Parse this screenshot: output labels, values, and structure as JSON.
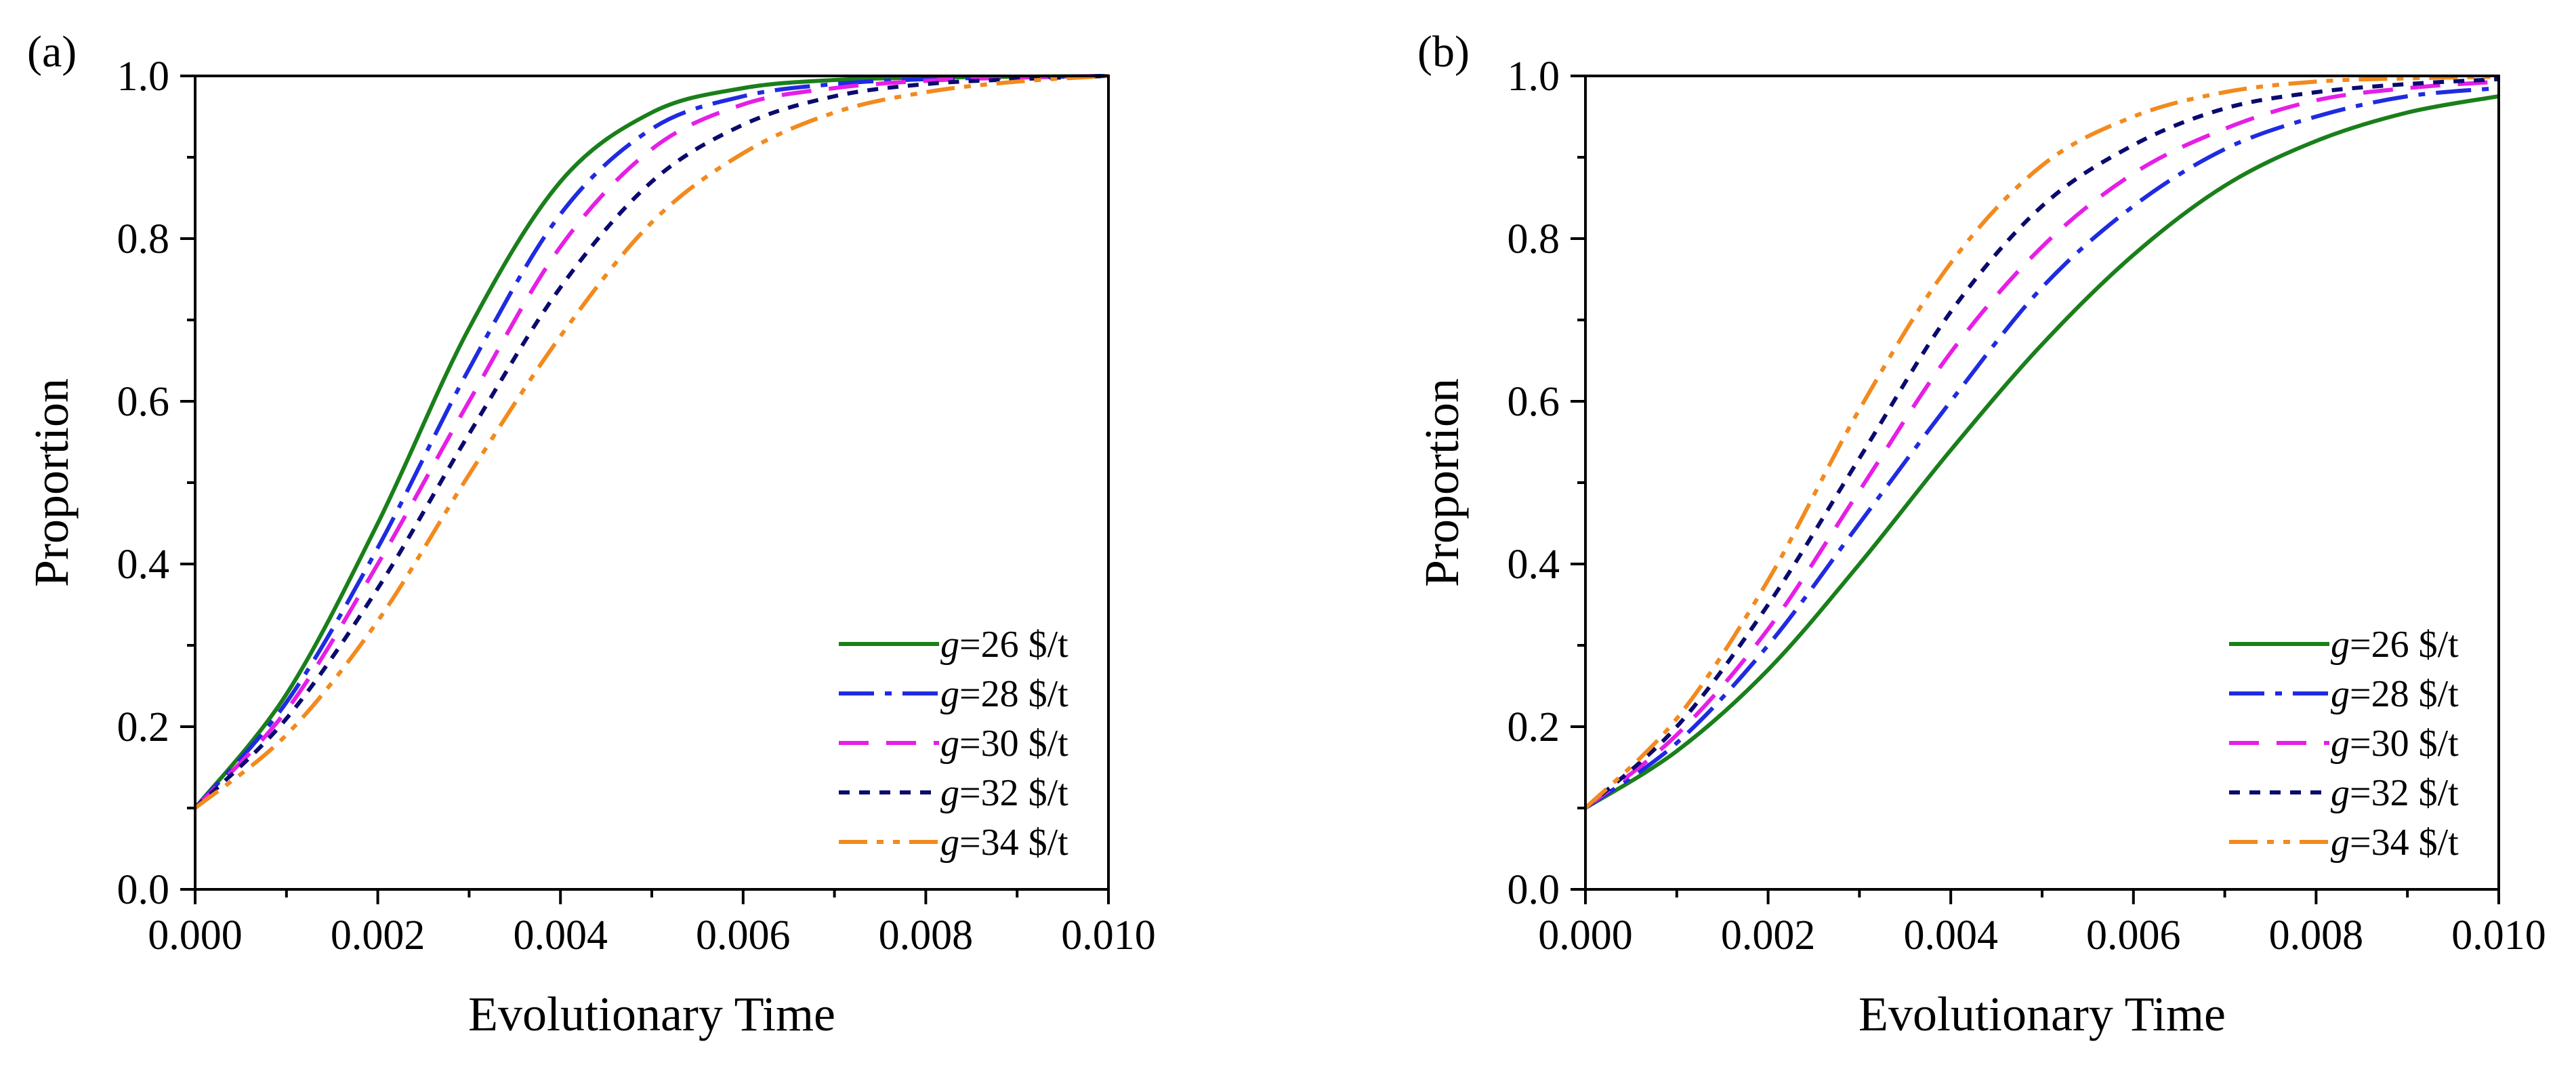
{
  "figure": {
    "panel_count": 2
  },
  "chart_data": [
    {
      "type": "line",
      "panel_label": "(a)",
      "xlabel": "Evolutionary Time",
      "ylabel": "Proportion",
      "xlim": [
        0.0,
        0.01
      ],
      "ylim": [
        0.0,
        1.0
      ],
      "x_ticks": [
        0.0,
        0.002,
        0.004,
        0.006,
        0.008,
        0.01
      ],
      "x_tick_labels": [
        "0.000",
        "0.002",
        "0.004",
        "0.006",
        "0.008",
        "0.010"
      ],
      "y_ticks": [
        0.0,
        0.2,
        0.4,
        0.6,
        0.8,
        1.0
      ],
      "y_tick_labels": [
        "0.0",
        "0.2",
        "0.4",
        "0.6",
        "0.8",
        "1.0"
      ],
      "grid": false,
      "legend_position": "bottom-right",
      "series": [
        {
          "name": "g=26 $/t",
          "var": "g",
          "rest": "=26  $/t",
          "color": "#1a7f1a",
          "dash": "solid",
          "x": [
            0.0,
            0.001,
            0.002,
            0.003,
            0.004,
            0.005,
            0.006,
            0.007,
            0.008,
            0.009,
            0.01
          ],
          "y": [
            0.1,
            0.24,
            0.45,
            0.69,
            0.87,
            0.955,
            0.985,
            0.995,
            0.998,
            0.999,
            1.0
          ]
        },
        {
          "name": "g=28 $/t",
          "var": "g",
          "rest": "=28  $/t",
          "color": "#1f2be0",
          "dash": "dashdot",
          "x": [
            0.0,
            0.001,
            0.002,
            0.003,
            0.004,
            0.005,
            0.006,
            0.007,
            0.008,
            0.009,
            0.01
          ],
          "y": [
            0.1,
            0.23,
            0.42,
            0.64,
            0.83,
            0.935,
            0.975,
            0.99,
            0.996,
            0.998,
            1.0
          ]
        },
        {
          "name": "g=30 $/t",
          "var": "g",
          "rest": "=30  $/t",
          "color": "#e61ee6",
          "dash": "dash",
          "x": [
            0.0,
            0.001,
            0.002,
            0.003,
            0.004,
            0.005,
            0.006,
            0.007,
            0.008,
            0.009,
            0.01
          ],
          "y": [
            0.1,
            0.22,
            0.4,
            0.6,
            0.79,
            0.91,
            0.965,
            0.985,
            0.994,
            0.998,
            1.0
          ]
        },
        {
          "name": "g=32 $/t",
          "var": "g",
          "rest": "=32  $/t",
          "color": "#0a0a6e",
          "dash": "shortdash",
          "x": [
            0.0,
            0.001,
            0.002,
            0.003,
            0.004,
            0.005,
            0.006,
            0.007,
            0.008,
            0.009,
            0.01
          ],
          "y": [
            0.1,
            0.21,
            0.37,
            0.56,
            0.74,
            0.87,
            0.94,
            0.975,
            0.99,
            0.996,
            1.0
          ]
        },
        {
          "name": "g=34 $/t",
          "var": "g",
          "rest": "=34  $/t",
          "color": "#f28a1e",
          "dash": "dashdotdot",
          "x": [
            0.0,
            0.001,
            0.002,
            0.003,
            0.004,
            0.005,
            0.006,
            0.007,
            0.008,
            0.009,
            0.01
          ],
          "y": [
            0.1,
            0.19,
            0.33,
            0.51,
            0.68,
            0.82,
            0.905,
            0.955,
            0.98,
            0.993,
            1.0
          ]
        }
      ]
    },
    {
      "type": "line",
      "panel_label": "(b)",
      "xlabel": "Evolutionary Time",
      "ylabel": "Proportion",
      "xlim": [
        0.0,
        0.01
      ],
      "ylim": [
        0.0,
        1.0
      ],
      "x_ticks": [
        0.0,
        0.002,
        0.004,
        0.006,
        0.008,
        0.01
      ],
      "x_tick_labels": [
        "0.000",
        "0.002",
        "0.004",
        "0.006",
        "0.008",
        "0.010"
      ],
      "y_ticks": [
        0.0,
        0.2,
        0.4,
        0.6,
        0.8,
        1.0
      ],
      "y_tick_labels": [
        "0.0",
        "0.2",
        "0.4",
        "0.6",
        "0.8",
        "1.0"
      ],
      "grid": false,
      "legend_position": "bottom-right",
      "series": [
        {
          "name": "g=26 $/t",
          "var": "g",
          "rest": "=26  $/t",
          "color": "#1a7f1a",
          "dash": "solid",
          "x": [
            0.0,
            0.001,
            0.002,
            0.003,
            0.004,
            0.005,
            0.006,
            0.007,
            0.008,
            0.009,
            0.01
          ],
          "y": [
            0.1,
            0.17,
            0.27,
            0.4,
            0.54,
            0.67,
            0.78,
            0.865,
            0.92,
            0.955,
            0.975
          ]
        },
        {
          "name": "g=28 $/t",
          "var": "g",
          "rest": "=28  $/t",
          "color": "#1f2be0",
          "dash": "dashdot",
          "x": [
            0.0,
            0.001,
            0.002,
            0.003,
            0.004,
            0.005,
            0.006,
            0.007,
            0.008,
            0.009,
            0.01
          ],
          "y": [
            0.1,
            0.18,
            0.3,
            0.45,
            0.6,
            0.74,
            0.84,
            0.91,
            0.95,
            0.975,
            0.985
          ]
        },
        {
          "name": "g=30 $/t",
          "var": "g",
          "rest": "=30  $/t",
          "color": "#e61ee6",
          "dash": "dash",
          "x": [
            0.0,
            0.001,
            0.002,
            0.003,
            0.004,
            0.005,
            0.006,
            0.007,
            0.008,
            0.009,
            0.01
          ],
          "y": [
            0.1,
            0.19,
            0.32,
            0.49,
            0.66,
            0.79,
            0.88,
            0.935,
            0.97,
            0.985,
            0.993
          ]
        },
        {
          "name": "g=32 $/t",
          "var": "g",
          "rest": "=32  $/t",
          "color": "#0a0a6e",
          "dash": "shortdash",
          "x": [
            0.0,
            0.001,
            0.002,
            0.003,
            0.004,
            0.005,
            0.006,
            0.007,
            0.008,
            0.009,
            0.01
          ],
          "y": [
            0.1,
            0.2,
            0.35,
            0.53,
            0.71,
            0.84,
            0.915,
            0.96,
            0.98,
            0.99,
            0.996
          ]
        },
        {
          "name": "g=34 $/t",
          "var": "g",
          "rest": "=34  $/t",
          "color": "#f28a1e",
          "dash": "dashdotdot",
          "x": [
            0.0,
            0.001,
            0.002,
            0.003,
            0.004,
            0.005,
            0.006,
            0.007,
            0.008,
            0.009,
            0.01
          ],
          "y": [
            0.1,
            0.21,
            0.38,
            0.59,
            0.77,
            0.89,
            0.95,
            0.98,
            0.993,
            0.997,
            0.999
          ]
        }
      ]
    }
  ]
}
